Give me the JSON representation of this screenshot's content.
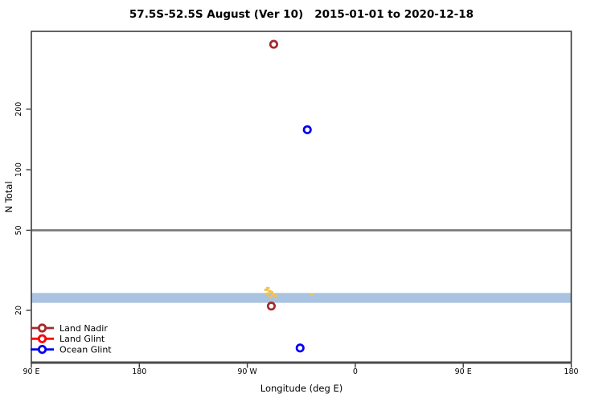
{
  "chart_data": {
    "type": "scatter",
    "title": "57.5S-52.5S August (Ver 10)   2015-01-01 to 2020-12-18",
    "xlabel": "Longitude (deg E)",
    "ylabel": "N Total",
    "x_axis": {
      "scale": "linear",
      "min": 90,
      "max": 540,
      "ticks": [
        {
          "lon": 90,
          "label": "90 E"
        },
        {
          "lon": 180,
          "label": "180"
        },
        {
          "lon": 270,
          "label": "90 W"
        },
        {
          "lon": 360,
          "label": "0"
        },
        {
          "lon": 450,
          "label": "90 E"
        },
        {
          "lon": 540,
          "label": "180"
        }
      ]
    },
    "y_axis": {
      "scale": "log",
      "min": 11,
      "max": 487,
      "ticks": [
        {
          "n": 200,
          "label": "200"
        },
        {
          "n": 100,
          "label": "100"
        },
        {
          "n": 50,
          "label": "50"
        },
        {
          "n": 20,
          "label": "20"
        }
      ]
    },
    "reference_line": {
      "n": 50,
      "color": "#787878"
    },
    "band": {
      "n_low": 21.8,
      "n_high": 24.4,
      "color": "#a9c3e1"
    },
    "series": [
      {
        "name": "Land Nadir",
        "color": "#a52a2a",
        "points": [
          {
            "lon": 292,
            "n": 420
          },
          {
            "lon": 290,
            "n": 21
          }
        ]
      },
      {
        "name": "Land Glint",
        "color": "#ff0000",
        "points": []
      },
      {
        "name": "Ocean Glint",
        "color": "#0000ee",
        "points": [
          {
            "lon": 320,
            "n": 158
          },
          {
            "lon": 314,
            "n": 13
          }
        ]
      }
    ],
    "small_marks": {
      "color": "#eec455",
      "points": [
        {
          "lon": 285.5,
          "n": 25.3
        },
        {
          "lon": 287.0,
          "n": 25.8
        },
        {
          "lon": 288.5,
          "n": 24.9
        },
        {
          "lon": 286.5,
          "n": 24.2
        },
        {
          "lon": 290.0,
          "n": 24.6
        },
        {
          "lon": 291.5,
          "n": 23.9
        },
        {
          "lon": 293.5,
          "n": 23.6
        },
        {
          "lon": 289.0,
          "n": 23.3
        },
        {
          "lon": 324.0,
          "n": 24.0
        }
      ]
    },
    "legend": {
      "items": [
        {
          "label": "Land Nadir",
          "color": "#a52a2a"
        },
        {
          "label": "Land Glint",
          "color": "#ff0000"
        },
        {
          "label": "Ocean Glint",
          "color": "#0000ee"
        }
      ]
    }
  }
}
